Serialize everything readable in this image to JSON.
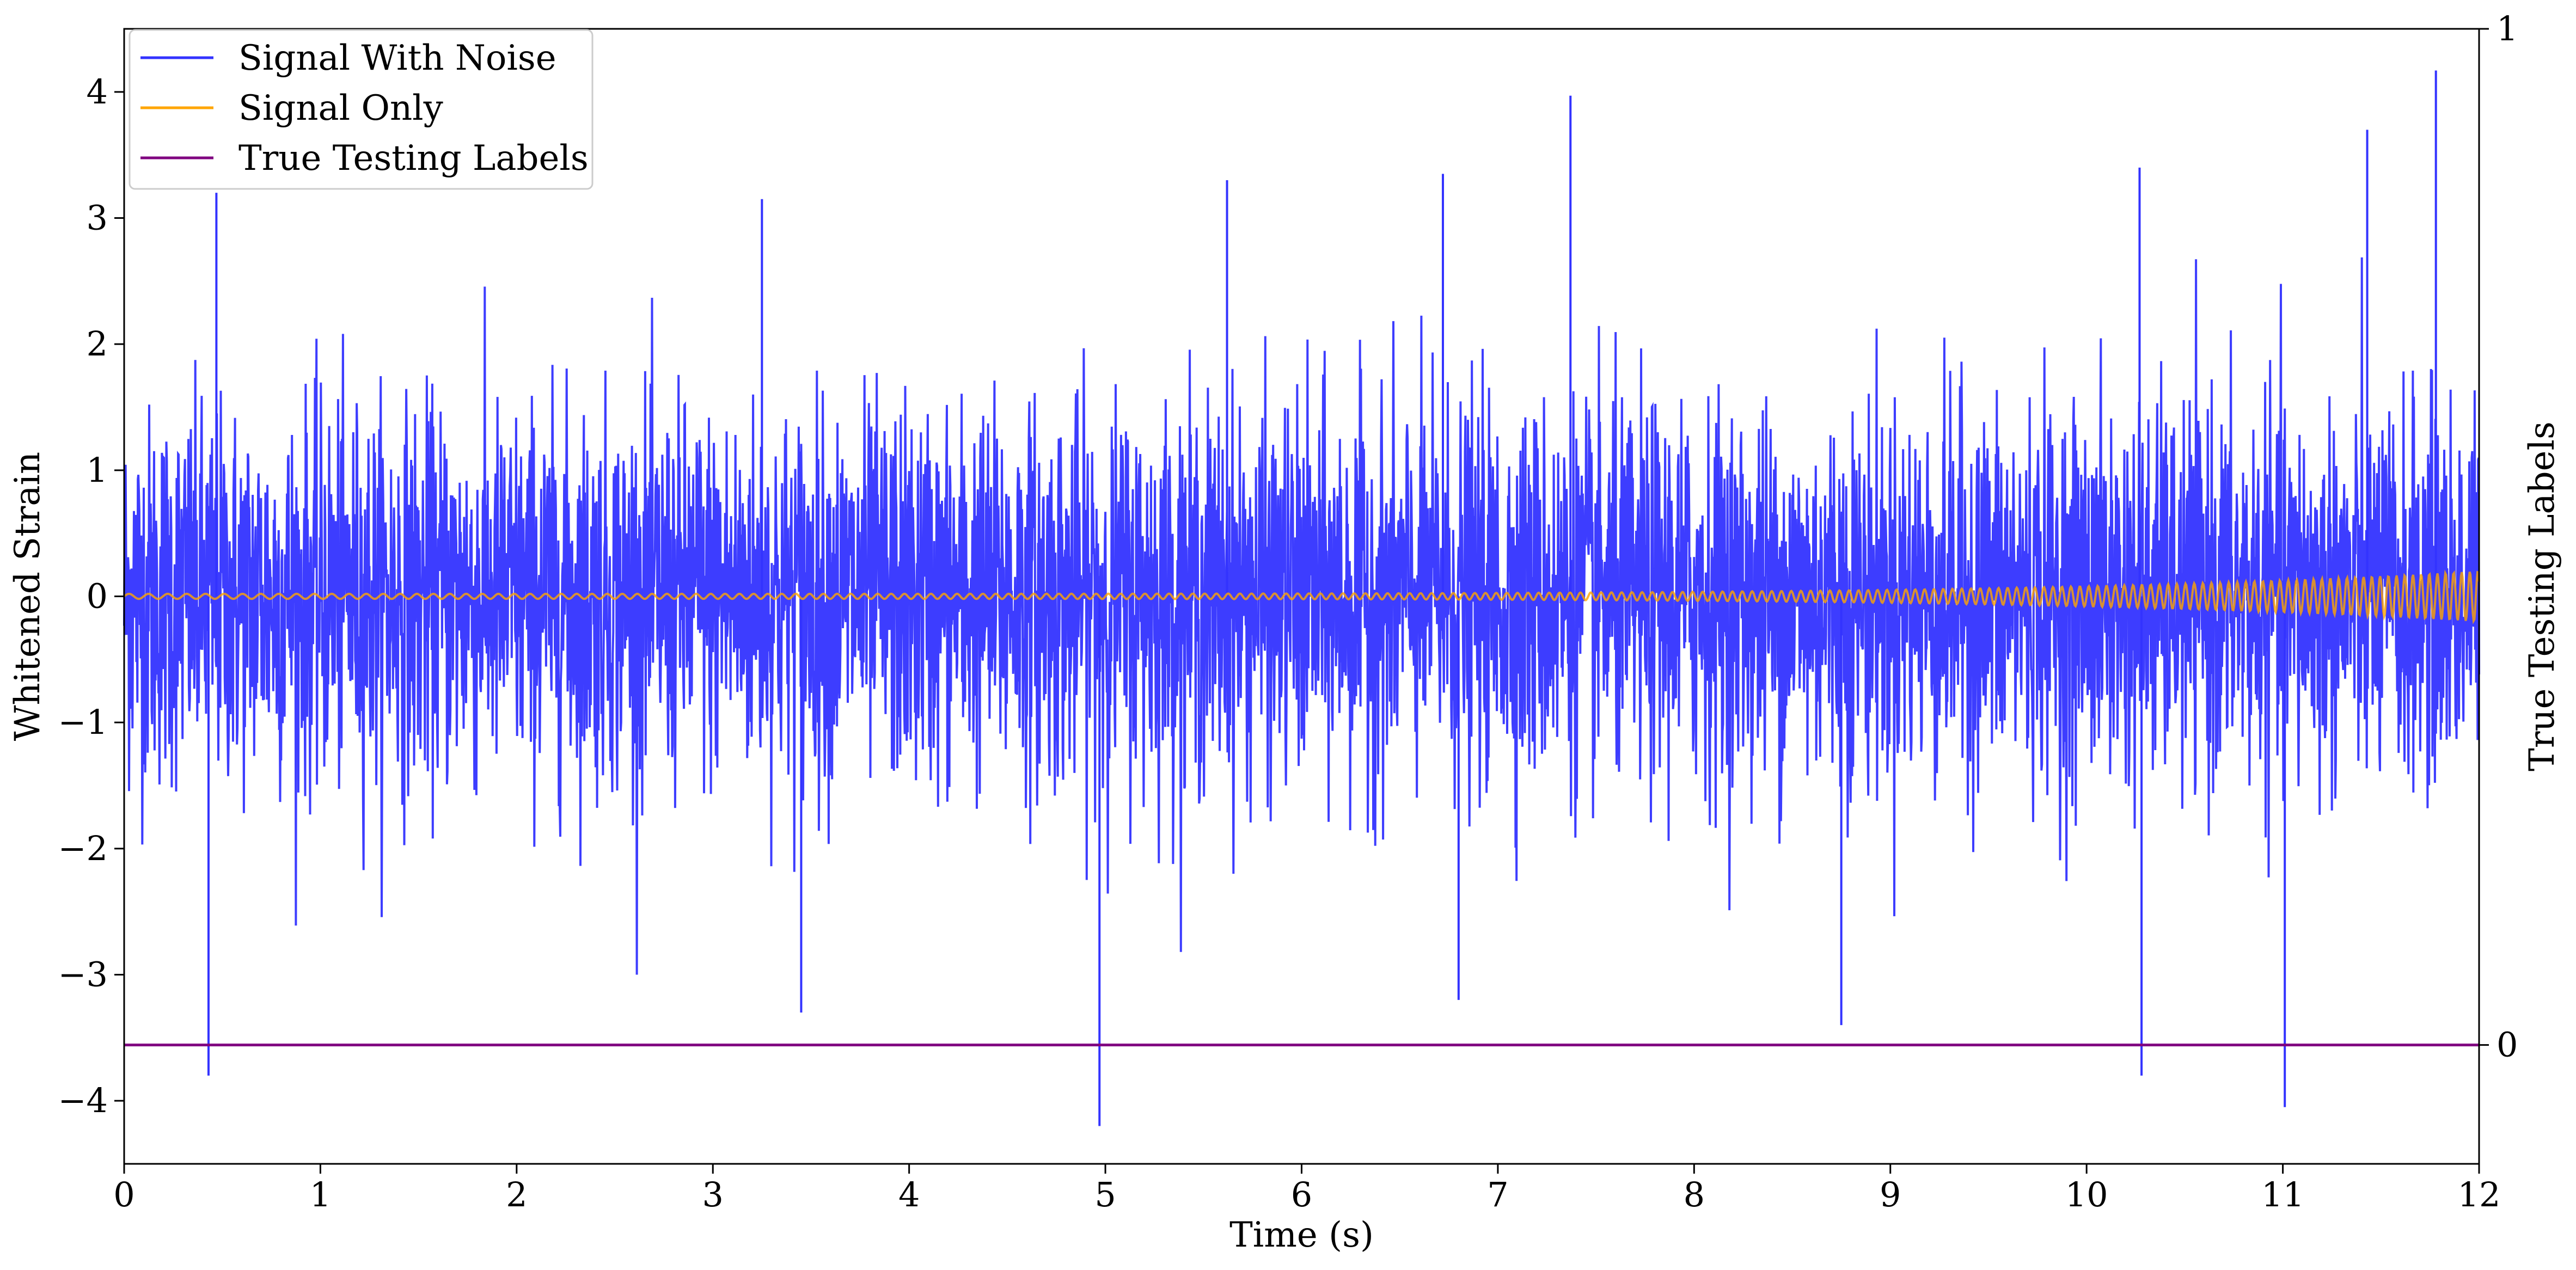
{
  "chart_data": {
    "type": "line",
    "xlabel": "Time (s)",
    "ylabel": "Whitened Strain",
    "ylabel_right": "True Testing Labels",
    "xlim": [
      0,
      12
    ],
    "ylim": [
      -4.5,
      4.5
    ],
    "ylim_right": [
      -0.117,
      1.0
    ],
    "x_ticks": [
      0,
      1,
      2,
      3,
      4,
      5,
      6,
      7,
      8,
      9,
      10,
      11,
      12
    ],
    "y_ticks": [
      -4,
      -3,
      -2,
      -1,
      0,
      1,
      2,
      3,
      4
    ],
    "y_tick_labels": [
      "−4",
      "−3",
      "−2",
      "−1",
      "0",
      "1",
      "2",
      "3",
      "4"
    ],
    "y_right_ticks": [
      0,
      1
    ],
    "y_right_tick_labels": [
      "0",
      "1"
    ],
    "grid": false,
    "legend_position": "top-left",
    "series": [
      {
        "name": "Signal With Noise",
        "color": "#3333ff",
        "kind": "noise",
        "typical_std": 0.75,
        "peak_values": [
          {
            "x": 0.43,
            "y": -3.8
          },
          {
            "x": 0.47,
            "y": 3.2
          },
          {
            "x": 3.25,
            "y": 3.15
          },
          {
            "x": 3.45,
            "y": -3.3
          },
          {
            "x": 4.97,
            "y": -4.2
          },
          {
            "x": 5.62,
            "y": 3.3
          },
          {
            "x": 6.72,
            "y": 3.35
          },
          {
            "x": 6.8,
            "y": -3.2
          },
          {
            "x": 7.37,
            "y": 3.97
          },
          {
            "x": 8.75,
            "y": -3.4
          },
          {
            "x": 10.27,
            "y": 3.4
          },
          {
            "x": 10.28,
            "y": -3.8
          },
          {
            "x": 11.01,
            "y": -4.05
          },
          {
            "x": 11.43,
            "y": 3.7
          },
          {
            "x": 11.78,
            "y": 4.17
          }
        ]
      },
      {
        "name": "Signal Only",
        "color": "#ffa500",
        "kind": "chirp",
        "amplitude_start": 0.02,
        "amplitude_end": 0.2
      },
      {
        "name": "True Testing Labels",
        "color": "#800080",
        "axis": "right",
        "x": [
          0,
          12
        ],
        "y": [
          0,
          0
        ]
      }
    ]
  }
}
